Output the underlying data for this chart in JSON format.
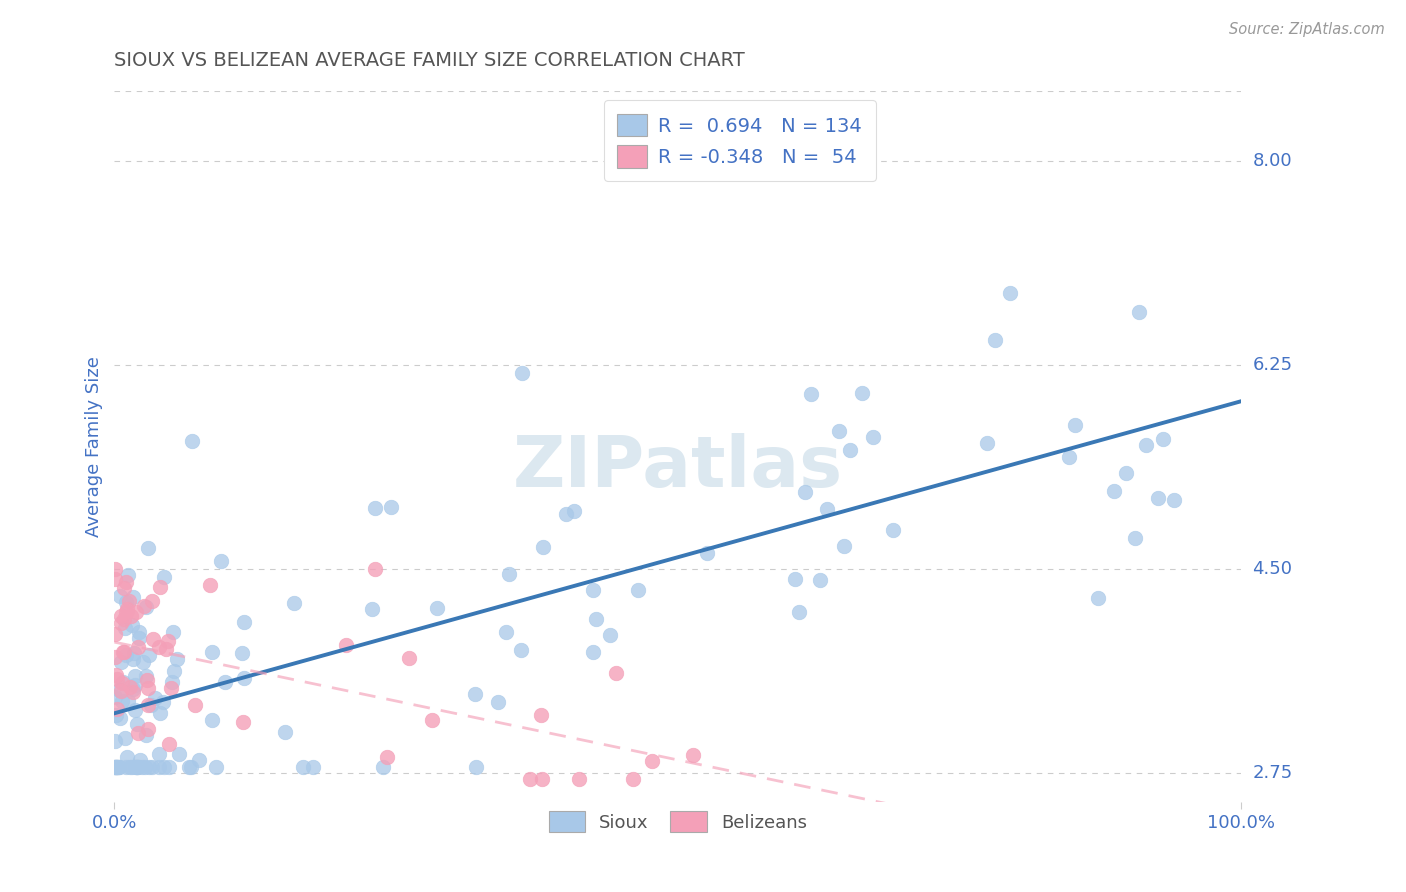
{
  "title": "SIOUX VS BELIZEAN AVERAGE FAMILY SIZE CORRELATION CHART",
  "source": "Source: ZipAtlas.com",
  "ylabel": "Average Family Size",
  "xlim": [
    0,
    100
  ],
  "ylim": [
    2.5,
    8.6
  ],
  "yticks_right": [
    2.75,
    4.5,
    6.25,
    8.0
  ],
  "sioux_color": "#a8c8e8",
  "sioux_line_color": "#3a78b5",
  "belizean_color": "#f4a0b8",
  "belizean_line_color": "#f4a0b8",
  "legend_R_sioux": "0.694",
  "legend_N_sioux": "134",
  "legend_R_belizean": "-0.348",
  "legend_N_belizean": "54",
  "background_color": "#ffffff",
  "grid_color": "#cccccc",
  "title_color": "#555555",
  "axis_label_color": "#4472c4",
  "watermark": "ZIPatlas",
  "watermark_color": "#dce8f0"
}
